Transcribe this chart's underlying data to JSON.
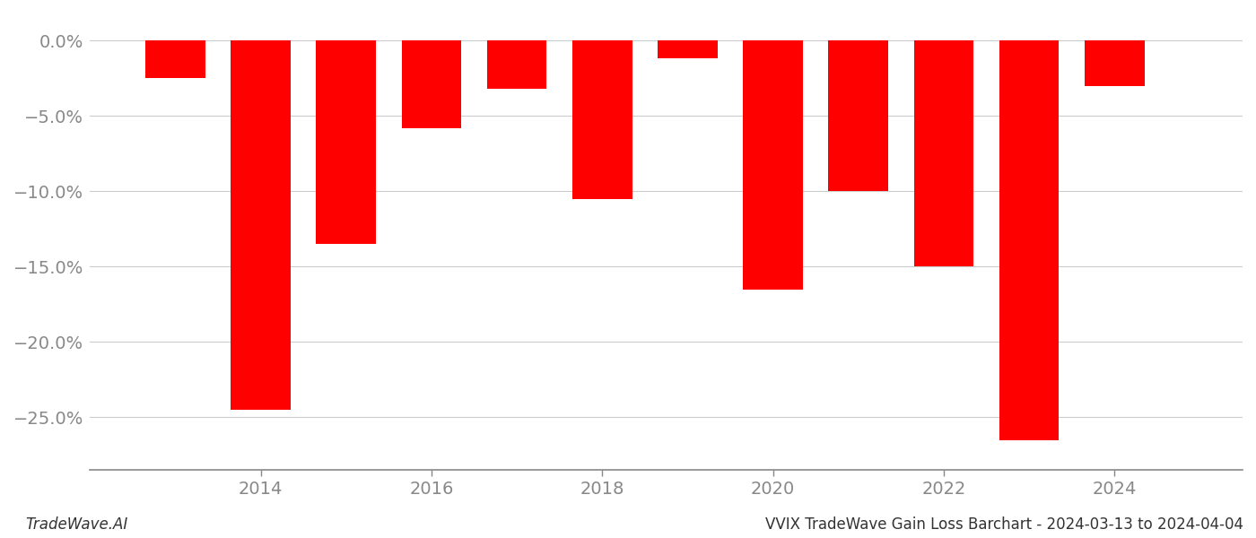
{
  "years": [
    2013,
    2014,
    2015,
    2016,
    2017,
    2018,
    2019,
    2020,
    2021,
    2022,
    2023,
    2024
  ],
  "values": [
    -0.025,
    -0.245,
    -0.135,
    -0.058,
    -0.032,
    -0.105,
    -0.012,
    -0.165,
    -0.1,
    -0.15,
    -0.265,
    -0.03
  ],
  "bar_color": "#ff0000",
  "background_color": "#ffffff",
  "grid_color": "#cccccc",
  "axis_color": "#888888",
  "tick_color": "#888888",
  "ylim": [
    -0.285,
    0.018
  ],
  "yticks": [
    0.0,
    -0.05,
    -0.1,
    -0.15,
    -0.2,
    -0.25
  ],
  "ytick_labels": [
    "0.0%",
    "−5.0%",
    "−10.0%",
    "−15.0%",
    "−20.0%",
    "−25.0%"
  ],
  "title": "VVIX TradeWave Gain Loss Barchart - 2024-03-13 to 2024-04-04",
  "watermark": "TradeWave.AI",
  "bar_width": 0.7,
  "xlim_left": 2012.0,
  "xlim_right": 2025.5,
  "xticks": [
    2014,
    2016,
    2018,
    2020,
    2022,
    2024
  ],
  "tick_fontsize": 14,
  "footer_fontsize": 12
}
